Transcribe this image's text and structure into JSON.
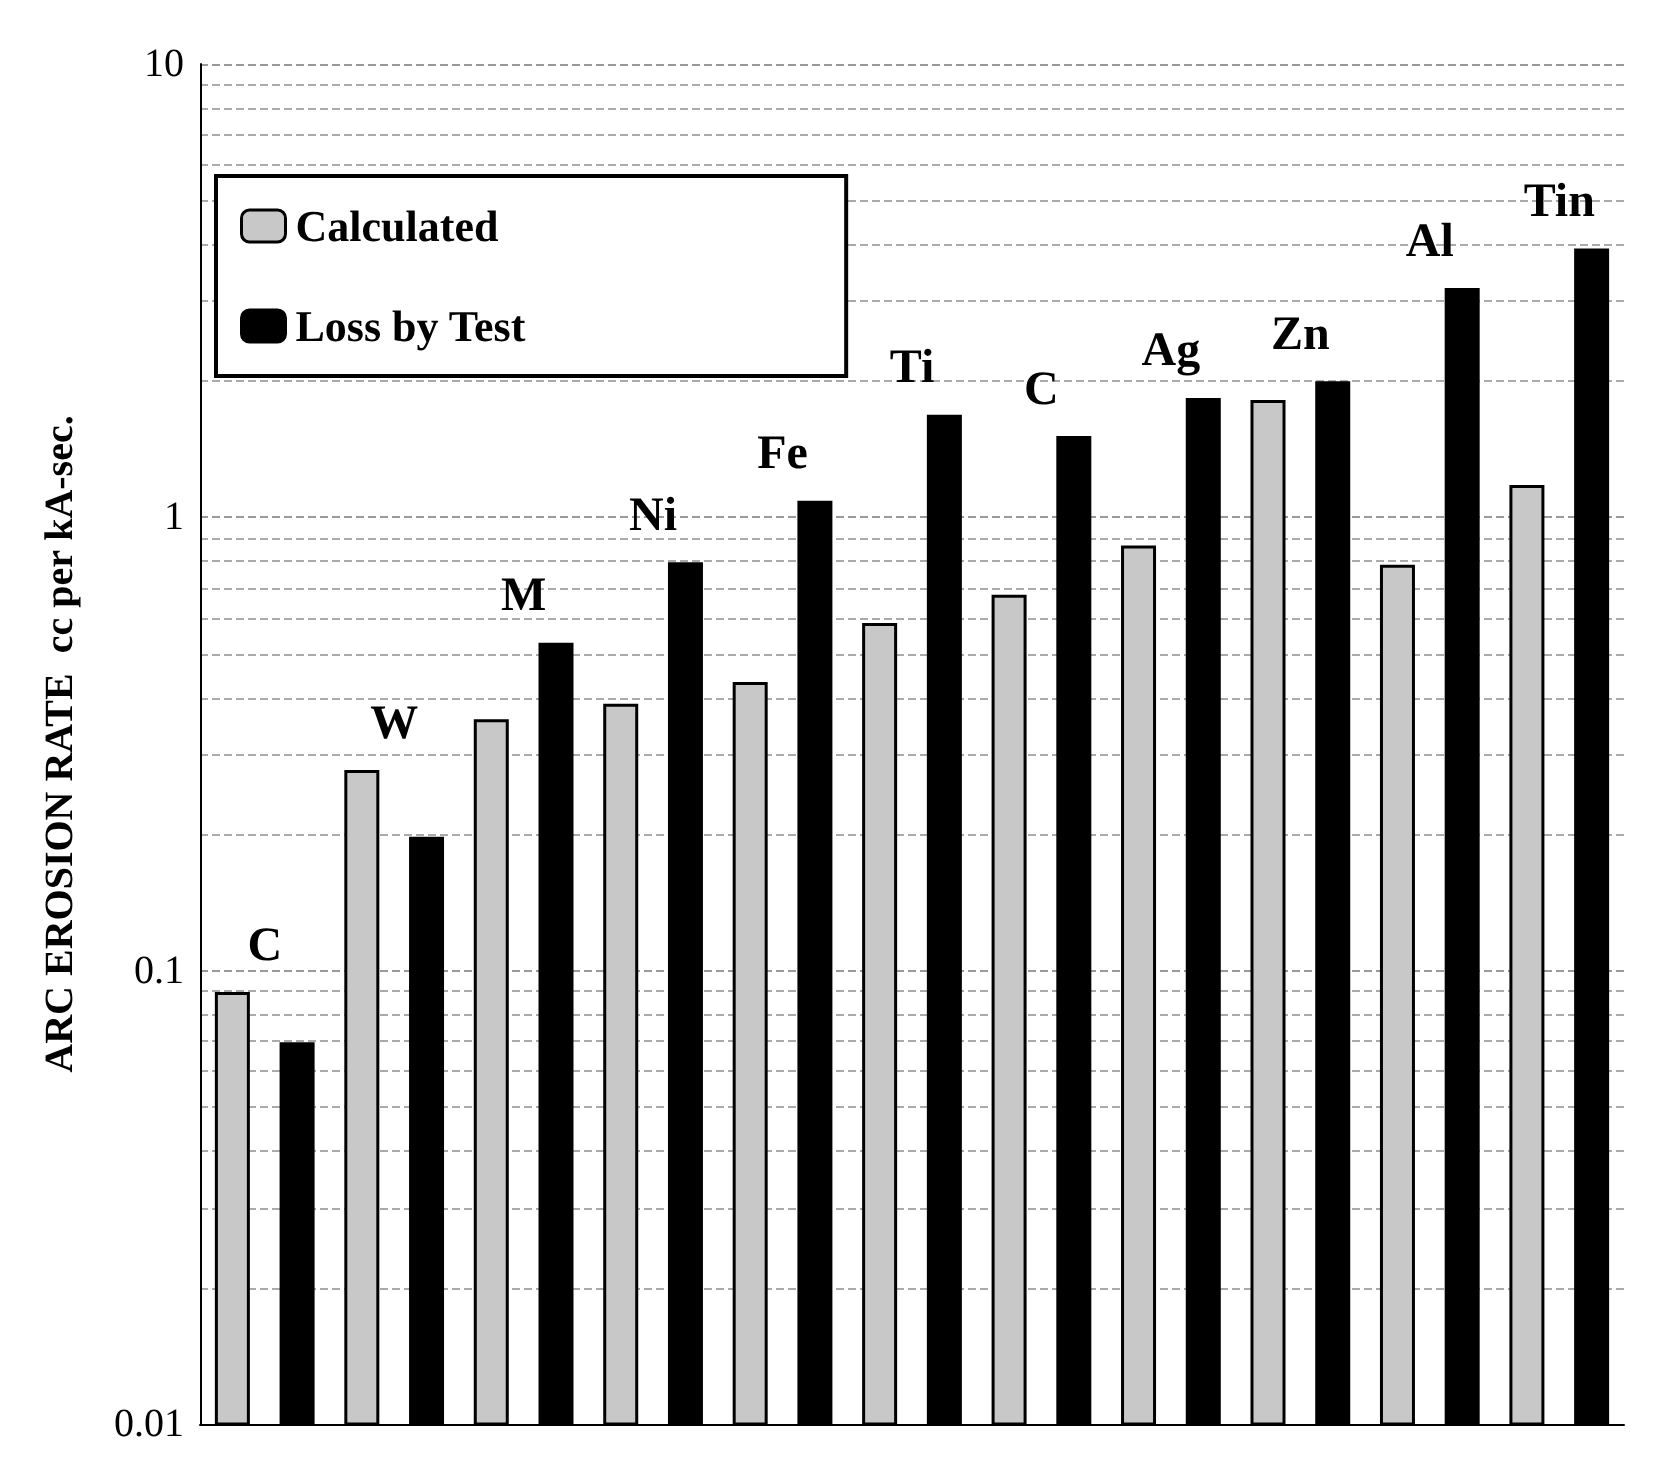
{
  "chart_data": {
    "type": "bar",
    "ylabel": "ARC EROSION RATE  cc per kA-sec.",
    "categories": [
      "C",
      "W",
      "M",
      "Ni",
      "Fe",
      "Ti",
      "C",
      "Ag",
      "Zn",
      "Al",
      "Tin"
    ],
    "tick_labels": "y",
    "log": "y",
    "ylim": [
      0.01,
      10
    ],
    "yticks": [
      0.01,
      0.1,
      1,
      10
    ],
    "grid": "y",
    "legend": "top left",
    "series": [
      {
        "name": "Calculated",
        "color": "#c8c8c8",
        "values": [
          0.089,
          0.275,
          0.356,
          0.385,
          0.43,
          0.58,
          0.67,
          0.86,
          1.8,
          0.78,
          1.17
        ]
      },
      {
        "name": "Loss by Test",
        "color": "#000000",
        "values": [
          0.069,
          0.196,
          0.525,
          0.79,
          1.08,
          1.67,
          1.5,
          1.82,
          1.98,
          3.18,
          3.89
        ]
      }
    ]
  }
}
